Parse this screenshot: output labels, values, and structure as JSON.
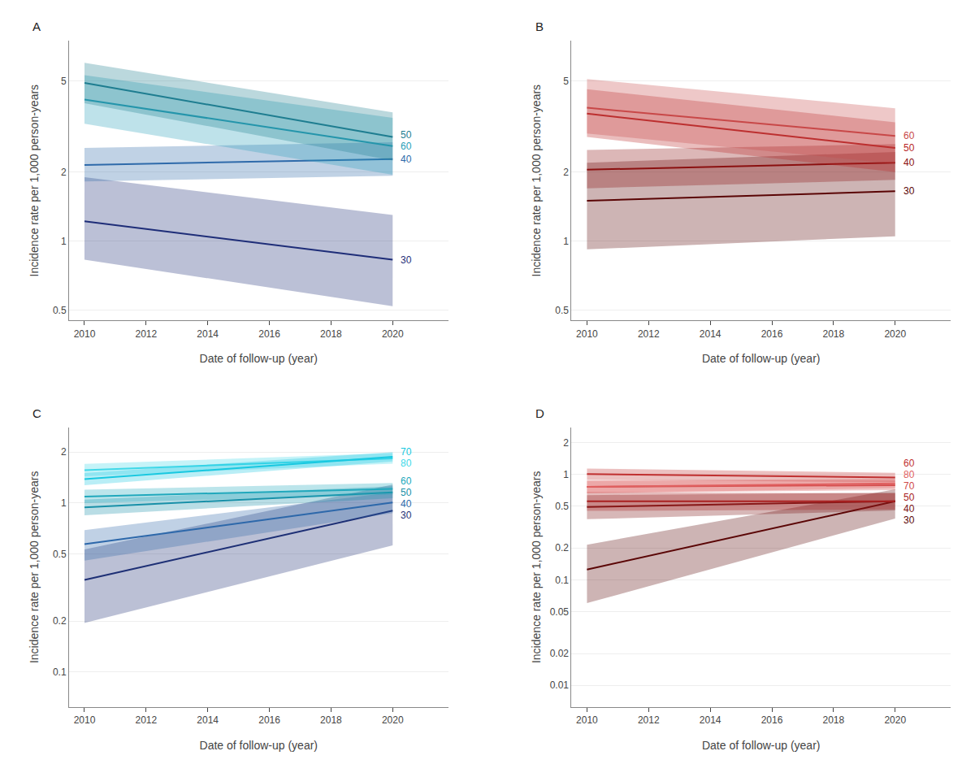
{
  "chart_data": [
    {
      "type": "line",
      "title": "A",
      "xlabel": "Date of follow-up (year)",
      "ylabel": "Incidence rate per 1,000 person-years",
      "x": [
        2010,
        2020
      ],
      "xlim": [
        2009.5,
        2021.8
      ],
      "xticks": [
        2010,
        2012,
        2014,
        2016,
        2018,
        2020
      ],
      "ylim": [
        0.45,
        7.5
      ],
      "yticks": [
        0.5,
        1,
        2,
        5
      ],
      "log": "y",
      "grid": true,
      "series": [
        {
          "name": "30",
          "color": "#1e2d78",
          "values": [
            1.22,
            0.83
          ],
          "ci_lo": [
            0.83,
            0.52
          ],
          "ci_hi": [
            1.9,
            1.3
          ]
        },
        {
          "name": "40",
          "color": "#2e6aaa",
          "values": [
            2.15,
            2.28
          ],
          "ci_lo": [
            1.82,
            1.93
          ],
          "ci_hi": [
            2.55,
            2.7
          ]
        },
        {
          "name": "60",
          "color": "#28a0b8",
          "values": [
            4.15,
            2.6
          ],
          "ci_lo": [
            3.25,
            1.95
          ],
          "ci_hi": [
            5.3,
            3.45
          ]
        },
        {
          "name": "50",
          "color": "#1e7d90",
          "values": [
            4.9,
            2.85
          ],
          "ci_lo": [
            4.0,
            2.25
          ],
          "ci_hi": [
            6.0,
            3.65
          ]
        }
      ]
    },
    {
      "type": "line",
      "title": "B",
      "xlabel": "Date of follow-up (year)",
      "ylabel": "Incidence rate per 1,000 person-years",
      "x": [
        2010,
        2020
      ],
      "xlim": [
        2009.5,
        2021.8
      ],
      "xticks": [
        2010,
        2012,
        2014,
        2016,
        2018,
        2020
      ],
      "ylim": [
        0.45,
        7.5
      ],
      "yticks": [
        0.5,
        1,
        2,
        5
      ],
      "log": "y",
      "grid": true,
      "series": [
        {
          "name": "30",
          "color": "#5a0505",
          "values": [
            1.5,
            1.65
          ],
          "ci_lo": [
            0.92,
            1.05
          ],
          "ci_hi": [
            2.2,
            2.45
          ]
        },
        {
          "name": "40",
          "color": "#8b1010",
          "values": [
            2.05,
            2.2
          ],
          "ci_lo": [
            1.7,
            1.85
          ],
          "ci_hi": [
            2.5,
            2.65
          ]
        },
        {
          "name": "50",
          "color": "#b82525",
          "values": [
            3.6,
            2.55
          ],
          "ci_lo": [
            2.85,
            2.0
          ],
          "ci_hi": [
            4.6,
            3.3
          ]
        },
        {
          "name": "60",
          "color": "#c84848",
          "values": [
            3.82,
            2.88
          ],
          "ci_lo": [
            2.95,
            2.18
          ],
          "ci_hi": [
            5.1,
            3.8
          ]
        }
      ]
    },
    {
      "type": "line",
      "title": "C",
      "xlabel": "Date of follow-up (year)",
      "ylabel": "Incidence rate per 1,000 person-years",
      "x": [
        2010,
        2020
      ],
      "xlim": [
        2009.5,
        2021.8
      ],
      "xticks": [
        2010,
        2012,
        2014,
        2016,
        2018,
        2020
      ],
      "ylim": [
        0.062,
        2.8
      ],
      "yticks": [
        0.1,
        0.2,
        0.5,
        1,
        2
      ],
      "log": "y",
      "grid": true,
      "series": [
        {
          "name": "30",
          "color": "#1d2f75",
          "values": [
            0.35,
            0.9
          ],
          "ci_lo": [
            0.195,
            0.56
          ],
          "ci_hi": [
            0.53,
            1.28
          ]
        },
        {
          "name": "40",
          "color": "#2d68aa",
          "values": [
            0.57,
            1.005
          ],
          "ci_lo": [
            0.455,
            0.87
          ],
          "ci_hi": [
            0.69,
            1.155
          ]
        },
        {
          "name": "50",
          "color": "#1890a8",
          "values": [
            0.94,
            1.155
          ],
          "ci_lo": [
            0.845,
            1.065
          ],
          "ci_hi": [
            1.045,
            1.255
          ]
        },
        {
          "name": "60",
          "color": "#20a8bc",
          "values": [
            1.09,
            1.21
          ],
          "ci_lo": [
            0.995,
            1.12
          ],
          "ci_hi": [
            1.195,
            1.31
          ]
        },
        {
          "name": "80",
          "color": "#40d8e8",
          "values": [
            1.56,
            1.83
          ],
          "ci_lo": [
            1.435,
            1.705
          ],
          "ci_hi": [
            1.7,
            1.965
          ]
        },
        {
          "name": "70",
          "color": "#18c8e0",
          "values": [
            1.38,
            1.87
          ],
          "ci_lo": [
            1.27,
            1.755
          ],
          "ci_hi": [
            1.5,
            1.995
          ]
        }
      ]
    },
    {
      "type": "line",
      "title": "D",
      "xlabel": "Date of follow-up (year)",
      "ylabel": "Incidence rate per 1,000 person-years",
      "x": [
        2010,
        2020
      ],
      "xlim": [
        2009.5,
        2021.8
      ],
      "xticks": [
        2010,
        2012,
        2014,
        2016,
        2018,
        2020
      ],
      "ylim": [
        0.0062,
        2.8
      ],
      "yticks": [
        0.01,
        0.02,
        0.05,
        0.1,
        0.2,
        0.5,
        1,
        2
      ],
      "log": "y",
      "grid": true,
      "series": [
        {
          "name": "30",
          "color": "#5a0505",
          "values": [
            0.125,
            0.555
          ],
          "ci_lo": [
            0.06,
            0.38
          ],
          "ci_hi": [
            0.215,
            0.72
          ]
        },
        {
          "name": "40",
          "color": "#7a1212",
          "values": [
            0.49,
            0.555
          ],
          "ci_lo": [
            0.375,
            0.455
          ],
          "ci_hi": [
            0.635,
            0.67
          ]
        },
        {
          "name": "50",
          "color": "#a82020",
          "values": [
            0.555,
            0.555
          ],
          "ci_lo": [
            0.45,
            0.465
          ],
          "ci_hi": [
            0.68,
            0.66
          ]
        },
        {
          "name": "70",
          "color": "#d04848",
          "values": [
            0.76,
            0.79
          ],
          "ci_lo": [
            0.665,
            0.71
          ],
          "ci_hi": [
            0.87,
            0.875
          ]
        },
        {
          "name": "80",
          "color": "#e06060",
          "values": [
            0.76,
            0.82
          ],
          "ci_lo": [
            0.66,
            0.74
          ],
          "ci_hi": [
            0.875,
            0.91
          ]
        },
        {
          "name": "60",
          "color": "#c03030",
          "values": [
            1.005,
            0.935
          ],
          "ci_lo": [
            0.885,
            0.845
          ],
          "ci_hi": [
            1.135,
            1.035
          ]
        }
      ]
    }
  ]
}
